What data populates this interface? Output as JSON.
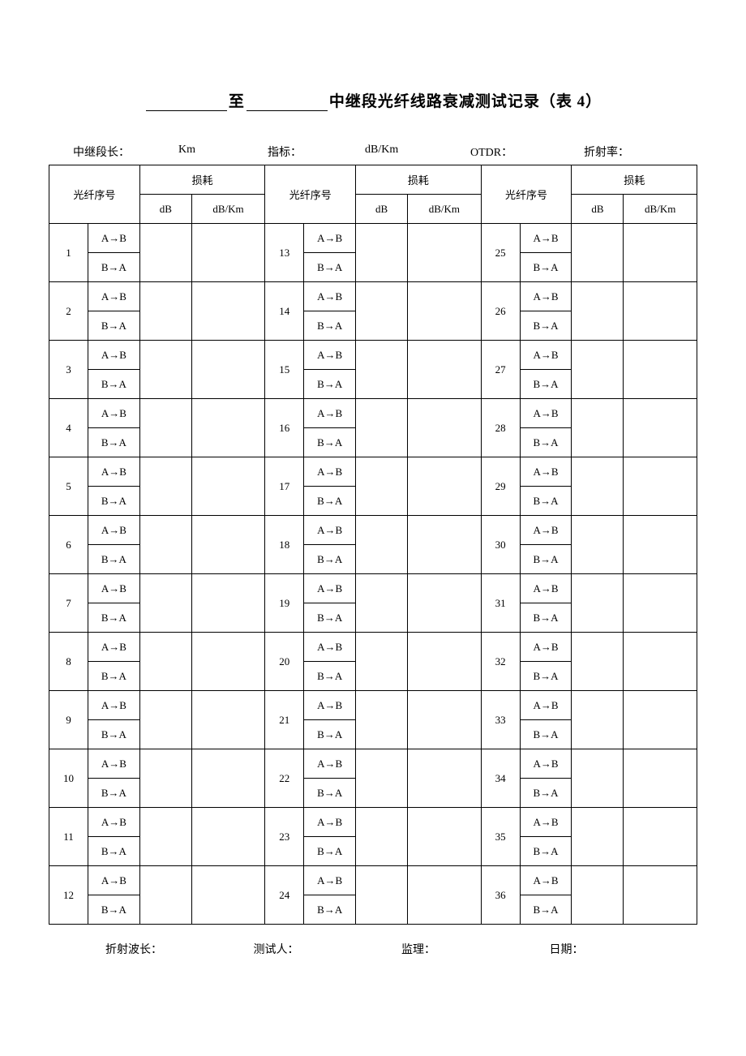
{
  "title": {
    "mid": "至",
    "suffix": "中继段光纤线路衰减测试记录（表 4）"
  },
  "meta": {
    "seg_len_label": "中继段长：",
    "seg_len_unit": "Km",
    "spec_label": "指标：",
    "spec_unit": "dB/Km",
    "otdr_label": "OTDR：",
    "refract_label": "折射率："
  },
  "headers": {
    "fiber_no": "光纤序号",
    "loss": "损耗",
    "db": "dB",
    "dbkm": "dB/Km"
  },
  "directions": {
    "ab": "A→B",
    "ba": "B→A"
  },
  "columns": [
    {
      "start": 1,
      "end": 12
    },
    {
      "start": 13,
      "end": 24
    },
    {
      "start": 25,
      "end": 36
    }
  ],
  "footer": {
    "wavelength": "折射波长：",
    "tester": "测试人：",
    "supervisor": "监理：",
    "date": "日期："
  },
  "colors": {
    "text": "#000000",
    "border": "#000000",
    "background": "#ffffff"
  }
}
